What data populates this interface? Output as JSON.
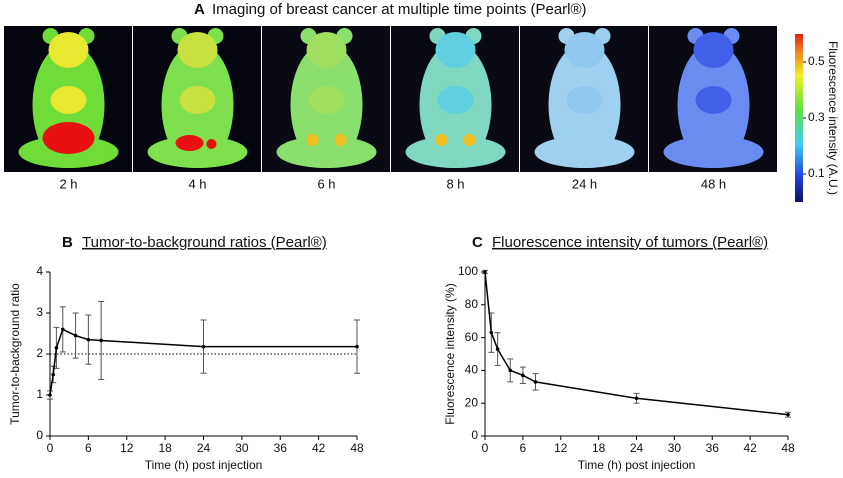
{
  "imaging": {
    "letter": "A",
    "title": "Imaging of breast cancer at multiple time points (Pearl®)",
    "time_points": [
      "2 h",
      "4 h",
      "6 h",
      "8 h",
      "24 h",
      "48 h"
    ],
    "colorbar": {
      "label": "Fluorescence intensity (A.U.)",
      "lim": [
        0,
        0.6
      ],
      "ticks": [
        0.5,
        0.3,
        0.1
      ]
    }
  },
  "chart_data": [
    {
      "type": "line",
      "letter": "B",
      "title": "Tumor-to-background ratios (Pearl®)",
      "x_label": "Time (h) post injection",
      "y_label": "Tumor-to-background ratio",
      "x": [
        0,
        0.5,
        1,
        2,
        4,
        6,
        8,
        24,
        48
      ],
      "values": [
        1.0,
        1.5,
        2.15,
        2.6,
        2.45,
        2.35,
        2.33,
        2.18,
        2.18
      ],
      "errors": [
        0.1,
        0.2,
        0.5,
        0.55,
        0.55,
        0.6,
        0.95,
        0.65,
        0.65
      ],
      "reference_line": 2,
      "color": "#000000",
      "xlim": [
        0,
        48
      ],
      "xticks": [
        0,
        6,
        12,
        18,
        24,
        30,
        36,
        42,
        48
      ],
      "ylim": [
        0,
        4
      ],
      "yticks": [
        0,
        1,
        2,
        3,
        4
      ]
    },
    {
      "type": "line",
      "letter": "C",
      "title": "Fluorescence intensity of tumors  (Pearl®)",
      "x_label": "Time (h) post injection",
      "y_label": "Fluorescence intensity  (%)",
      "x": [
        0,
        1,
        2,
        4,
        6,
        8,
        24,
        48
      ],
      "values": [
        100,
        63,
        53,
        40,
        37,
        33,
        23,
        13
      ],
      "errors": [
        1,
        12,
        10,
        7,
        5,
        5,
        3,
        1.5
      ],
      "color": "#000000",
      "xlim": [
        0,
        48
      ],
      "xticks": [
        0,
        6,
        12,
        18,
        24,
        30,
        36,
        42,
        48
      ],
      "ylim": [
        0,
        100
      ],
      "yticks": [
        0,
        20,
        40,
        60,
        80,
        100
      ]
    }
  ]
}
